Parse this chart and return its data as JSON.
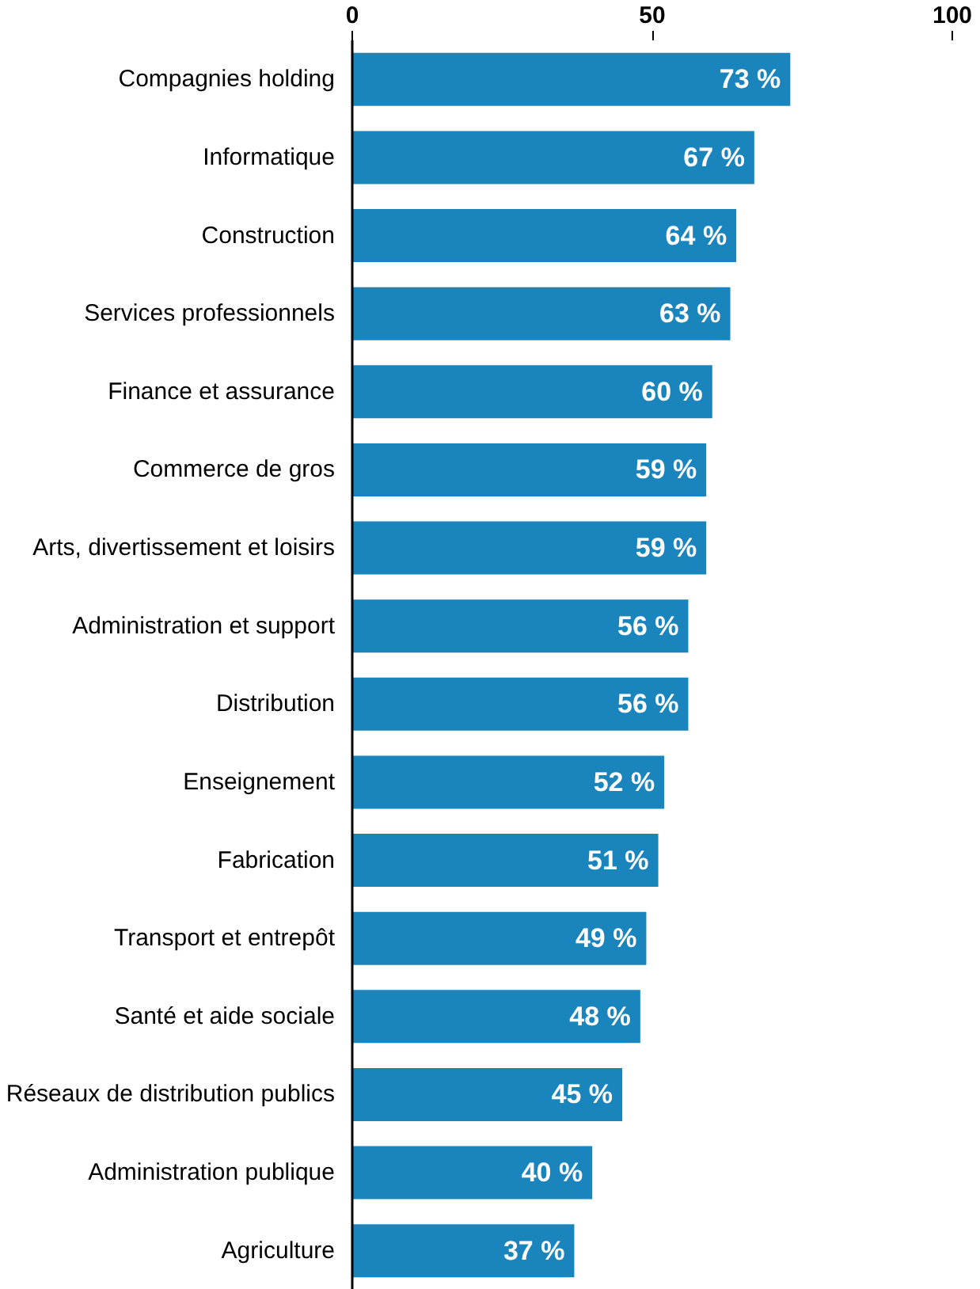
{
  "chart_data": {
    "type": "bar",
    "orientation": "horizontal",
    "categories": [
      "Compagnies holding",
      "Informatique",
      "Construction",
      "Services professionnels",
      "Finance et assurance",
      "Commerce de gros",
      "Arts, divertissement et loisirs",
      "Administration et support",
      "Distribution",
      "Enseignement",
      "Fabrication",
      "Transport et entrepôt",
      "Santé et aide sociale",
      "Réseaux de distribution publics",
      "Administration publique",
      "Agriculture"
    ],
    "values": [
      73,
      67,
      64,
      63,
      60,
      59,
      59,
      56,
      56,
      52,
      51,
      49,
      48,
      45,
      40,
      37
    ],
    "value_labels": [
      "73 %",
      "67 %",
      "64 %",
      "63 %",
      "60 %",
      "59 %",
      "59 %",
      "56 %",
      "56 %",
      "52 %",
      "51 %",
      "49 %",
      "48 %",
      "45 %",
      "40 %",
      "37 %"
    ],
    "color": "#1a85bd",
    "xlim": [
      0,
      100
    ],
    "xticks": [
      0,
      50,
      100
    ],
    "grid": false
  }
}
